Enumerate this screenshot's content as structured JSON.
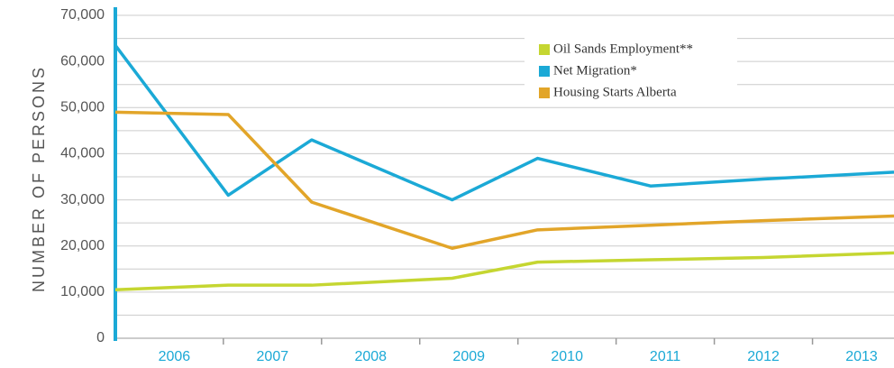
{
  "chart_data": {
    "type": "line",
    "y_label": "NUMBER OF PERSONS",
    "x": [
      2005.4,
      2006.55,
      2007.4,
      2008.83,
      2009.7,
      2010.85,
      2012,
      2013.33
    ],
    "xlim": [
      2005.4,
      2013.33
    ],
    "xticks": [
      2006,
      2007,
      2008,
      2009,
      2010,
      2011,
      2012,
      2013
    ],
    "ylim": [
      0,
      70000
    ],
    "yticks": [
      0,
      {
        "value": 10000,
        "label": "10,000"
      },
      {
        "value": 20000,
        "label": "20,000"
      },
      {
        "value": 30000,
        "label": "30,000"
      },
      {
        "value": 40000,
        "label": "40,000"
      },
      {
        "value": 50000,
        "label": "50,000"
      },
      {
        "value": 60000,
        "label": "60,000"
      },
      {
        "value": 70000,
        "label": "70,000"
      }
    ],
    "minor_yticks": [
      5000,
      15000,
      25000,
      35000,
      45000,
      55000,
      65000
    ],
    "grid": true,
    "legend": "upper right",
    "series": [
      {
        "name": "Oil Sands Employment**",
        "color": "#c5d631",
        "values": [
          10500,
          11500,
          11500,
          13000,
          16500,
          17000,
          17500,
          18500
        ]
      },
      {
        "name": "Net Migration*",
        "color": "#1ba9d6",
        "values": [
          63500,
          31000,
          43000,
          30000,
          39000,
          33000,
          34500,
          36000
        ]
      },
      {
        "name": "Housing Starts Alberta",
        "color": "#e2a529",
        "values": [
          49000,
          48500,
          29500,
          19500,
          23500,
          24500,
          25500,
          26500
        ]
      }
    ]
  }
}
